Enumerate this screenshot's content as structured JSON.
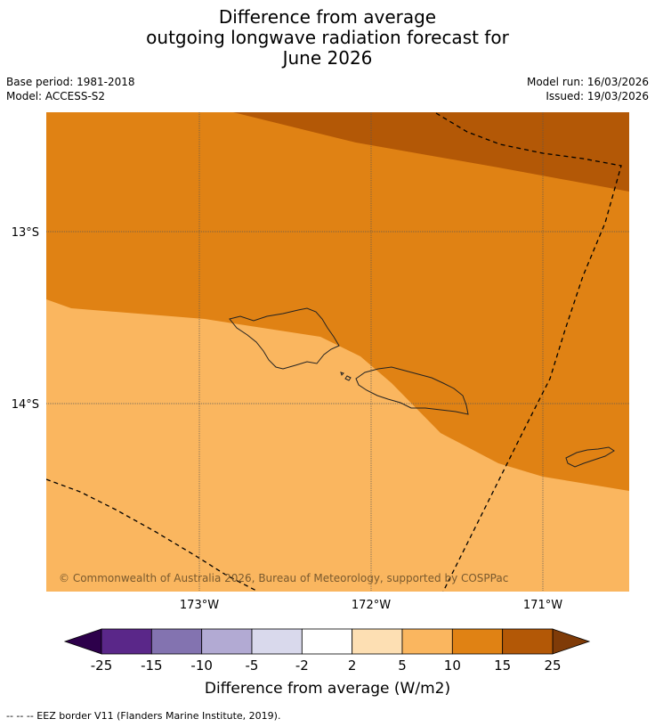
{
  "title": {
    "line1": "Difference from average",
    "line2": "outgoing longwave radiation forecast for",
    "line3": "June 2026"
  },
  "meta": {
    "base_period": "Base period: 1981-2018",
    "model": "Model: ACCESS-S2",
    "model_run": "Model run: 16/03/2026",
    "issued": "Issued: 19/03/2026"
  },
  "map": {
    "lat_labels": [
      "13°S",
      "14°S"
    ],
    "lon_labels": [
      "173°W",
      "172°W",
      "171°W"
    ],
    "copyright": "© Commonwealth of Australia 2026, Bureau of Meteorology, supported by COSPPac",
    "legend_title": "Difference from average (W/m2)",
    "legend_ticks": [
      "-25",
      "-15",
      "-10",
      "-5",
      "-2",
      "2",
      "5",
      "10",
      "15",
      "25"
    ],
    "legend_colors": [
      "#5a2789",
      "#8373b0",
      "#b2aad3",
      "#d9d9ec",
      "#ffffff",
      "#fddfb3",
      "#fab65f",
      "#e08214",
      "#b35806"
    ],
    "legend_extend_low": "#2d004b",
    "legend_extend_high": "#7f3b08",
    "footnote": "--  --  -- EEZ border V11 (Flanders Marine Institute, 2019)."
  }
}
